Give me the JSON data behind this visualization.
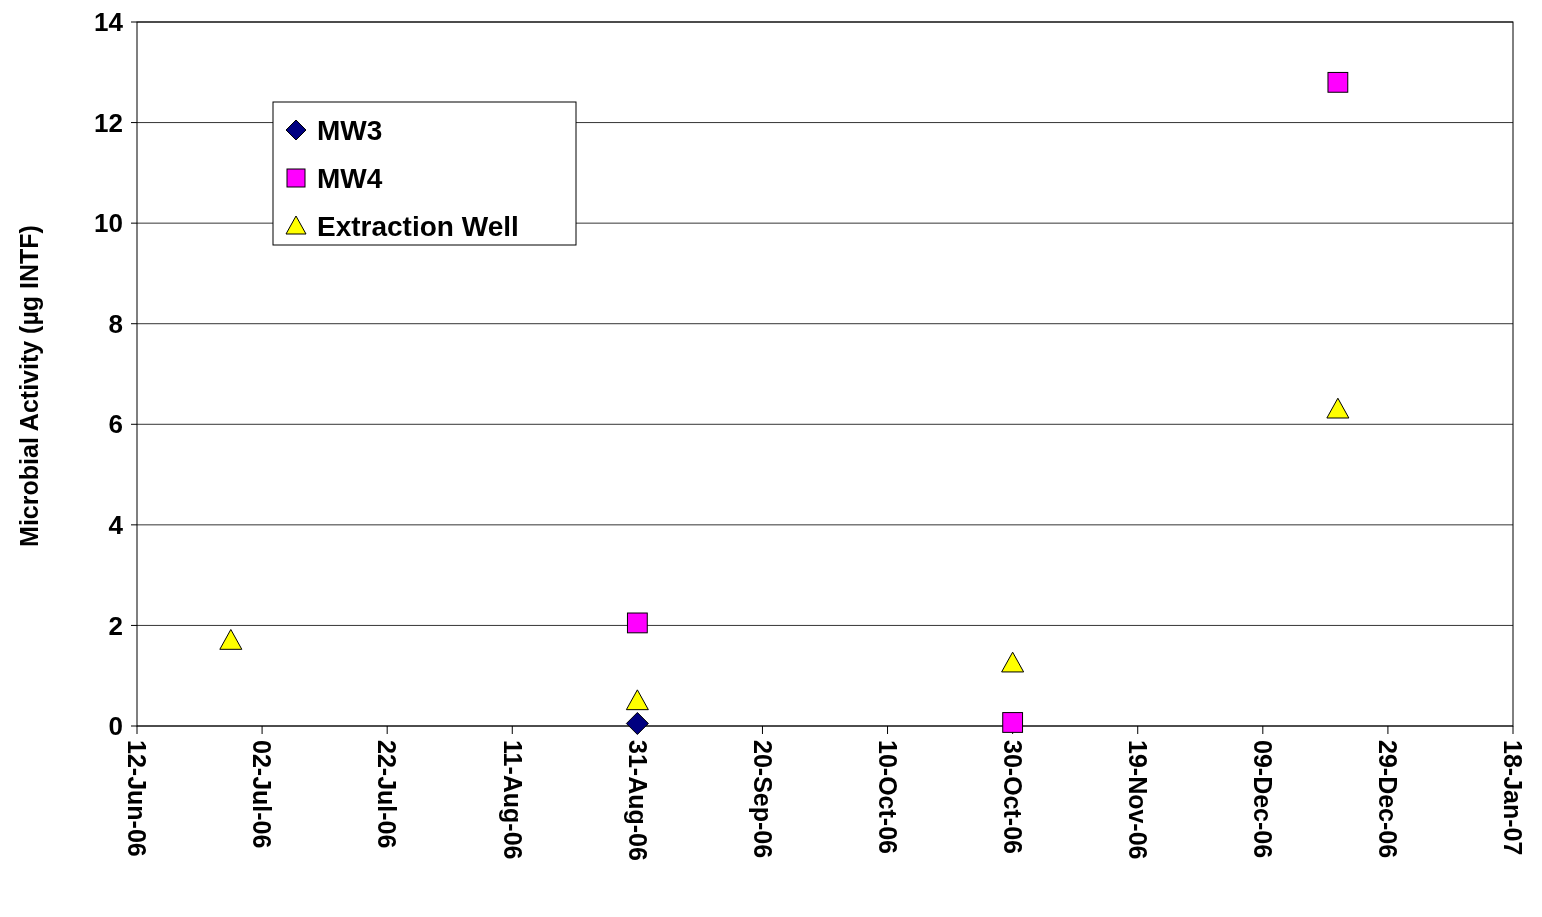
{
  "chart_data": {
    "type": "scatter",
    "ylabel": "Microbial Activity (µg INTF)",
    "xlim": [
      "2006-06-12",
      "2007-01-18"
    ],
    "xticks": [
      {
        "value": "2006-06-12",
        "label": "12-Jun-06"
      },
      {
        "value": "2006-07-02",
        "label": "02-Jul-06"
      },
      {
        "value": "2006-07-22",
        "label": "22-Jul-06"
      },
      {
        "value": "2006-08-11",
        "label": "11-Aug-06"
      },
      {
        "value": "2006-08-31",
        "label": "31-Aug-06"
      },
      {
        "value": "2006-09-20",
        "label": "20-Sep-06"
      },
      {
        "value": "2006-10-10",
        "label": "10-Oct-06"
      },
      {
        "value": "2006-10-30",
        "label": "30-Oct-06"
      },
      {
        "value": "2006-11-19",
        "label": "19-Nov-06"
      },
      {
        "value": "2006-12-09",
        "label": "09-Dec-06"
      },
      {
        "value": "2006-12-29",
        "label": "29-Dec-06"
      },
      {
        "value": "2007-01-18",
        "label": "18-Jan-07"
      }
    ],
    "ylim": [
      0,
      14
    ],
    "yticks": [
      0,
      2,
      4,
      6,
      8,
      10,
      12,
      14
    ],
    "grid": "y",
    "legend": "top left",
    "series": [
      {
        "name": "MW3",
        "color": "#000080",
        "marker": "diamond",
        "x": [
          "2006-08-31"
        ],
        "values": [
          0.05
        ]
      },
      {
        "name": "MW4",
        "color": "#ff00ff",
        "marker": "square",
        "x": [
          "2006-08-31",
          "2006-10-30",
          "2006-12-21"
        ],
        "values": [
          2.05,
          0.07,
          12.8
        ]
      },
      {
        "name": "Extraction Well",
        "color": "#ffff00",
        "marker": "triangle",
        "x": [
          "2006-06-27",
          "2006-08-31",
          "2006-10-30",
          "2006-12-21"
        ],
        "values": [
          1.7,
          0.5,
          1.25,
          6.3
        ]
      }
    ]
  }
}
